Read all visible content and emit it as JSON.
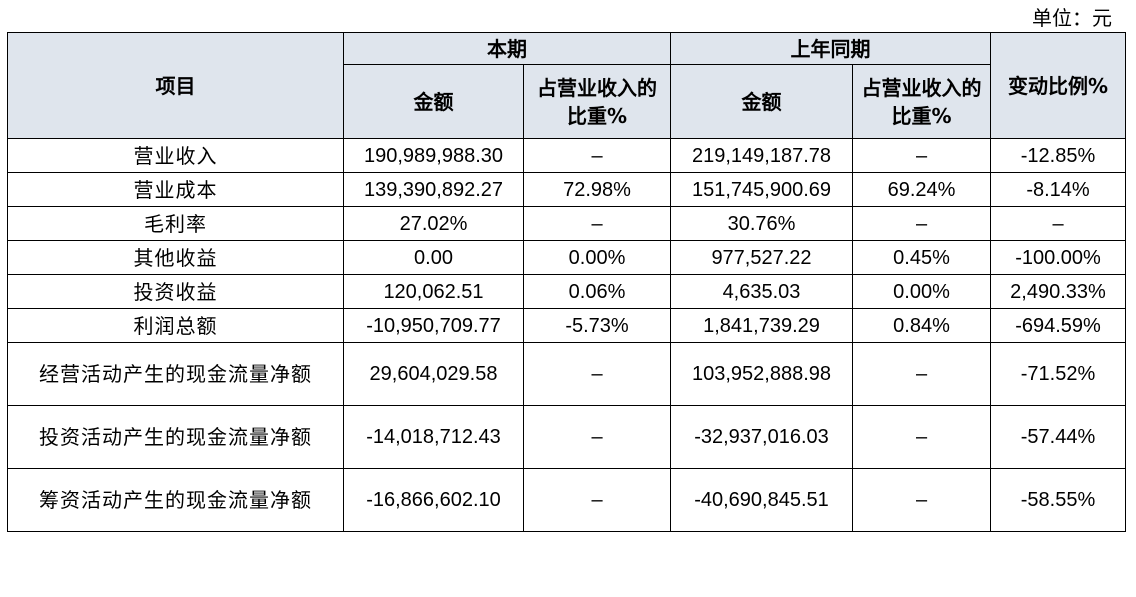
{
  "unit_label": "单位：元",
  "header": {
    "item": "项目",
    "current_period": "本期",
    "prior_period": "上年同期",
    "amount": "金额",
    "share_of_revenue": "占营业收入的比重%",
    "change_ratio": "变动比例%"
  },
  "rows": [
    {
      "item": "营业收入",
      "cur_amount": "190,989,988.30",
      "cur_share": "–",
      "prior_amount": "219,149,187.78",
      "prior_share": "–",
      "change": "-12.85%"
    },
    {
      "item": "营业成本",
      "cur_amount": "139,390,892.27",
      "cur_share": "72.98%",
      "prior_amount": "151,745,900.69",
      "prior_share": "69.24%",
      "change": "-8.14%"
    },
    {
      "item": "毛利率",
      "cur_amount": "27.02%",
      "cur_share": "–",
      "prior_amount": "30.76%",
      "prior_share": "–",
      "change": "–"
    },
    {
      "item": "其他收益",
      "cur_amount": "0.00",
      "cur_share": "0.00%",
      "prior_amount": "977,527.22",
      "prior_share": "0.45%",
      "change": "-100.00%"
    },
    {
      "item": "投资收益",
      "cur_amount": "120,062.51",
      "cur_share": "0.06%",
      "prior_amount": "4,635.03",
      "prior_share": "0.00%",
      "change": "2,490.33%"
    },
    {
      "item": "利润总额",
      "cur_amount": "-10,950,709.77",
      "cur_share": "-5.73%",
      "prior_amount": "1,841,739.29",
      "prior_share": "0.84%",
      "change": "-694.59%"
    },
    {
      "item": "经营活动产生的现金流量净额",
      "cur_amount": "29,604,029.58",
      "cur_share": "–",
      "prior_amount": "103,952,888.98",
      "prior_share": "–",
      "change": "-71.52%"
    },
    {
      "item": "投资活动产生的现金流量净额",
      "cur_amount": "-14,018,712.43",
      "cur_share": "–",
      "prior_amount": "-32,937,016.03",
      "prior_share": "–",
      "change": "-57.44%"
    },
    {
      "item": "筹资活动产生的现金流量净额",
      "cur_amount": "-16,866,602.10",
      "cur_share": "–",
      "prior_amount": "-40,690,845.51",
      "prior_share": "–",
      "change": "-58.55%"
    }
  ]
}
